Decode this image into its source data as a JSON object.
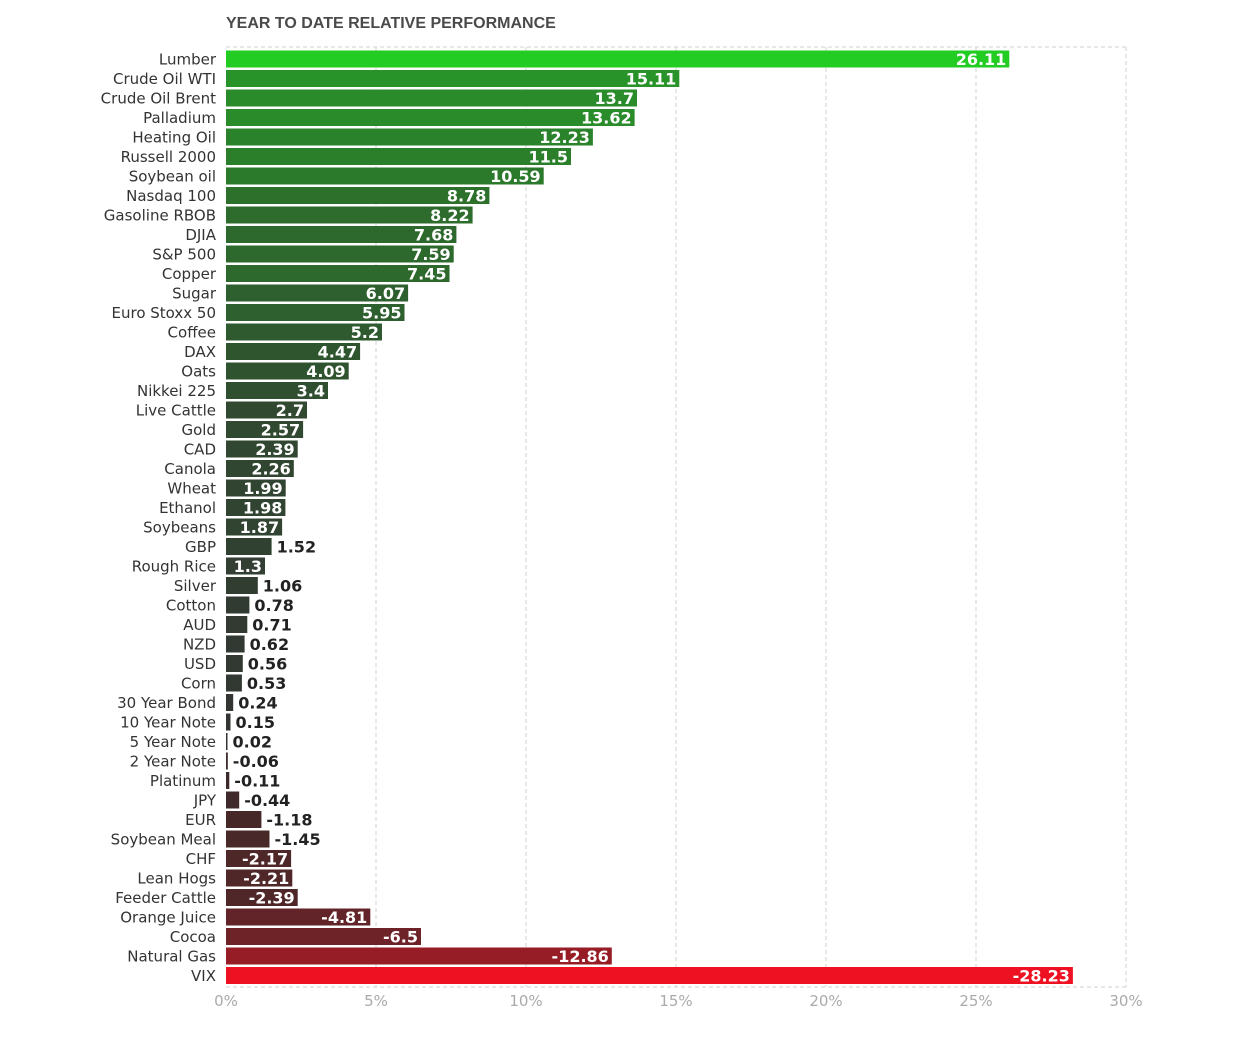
{
  "chart_data": {
    "type": "bar",
    "orientation": "horizontal",
    "title": "YEAR TO DATE RELATIVE PERFORMANCE",
    "xlim": [
      0,
      30
    ],
    "x_ticks": [
      {
        "value": 0,
        "label": "0%"
      },
      {
        "value": 5,
        "label": "5%"
      },
      {
        "value": 10,
        "label": "10%"
      },
      {
        "value": 15,
        "label": "15%"
      },
      {
        "value": 20,
        "label": "20%"
      },
      {
        "value": 25,
        "label": "25%"
      },
      {
        "value": 30,
        "label": "30%"
      }
    ],
    "grid": true,
    "bar_length": "absolute value",
    "colors": {
      "max_positive": "#22cc22",
      "min_positive": "#333333",
      "min_negative": "#3a2a2a",
      "max_negative": "#ee1122"
    },
    "categories": [
      "Lumber",
      "Crude Oil WTI",
      "Crude Oil Brent",
      "Palladium",
      "Heating Oil",
      "Russell 2000",
      "Soybean oil",
      "Nasdaq 100",
      "Gasoline RBOB",
      "DJIA",
      "S&P 500",
      "Copper",
      "Sugar",
      "Euro Stoxx 50",
      "Coffee",
      "DAX",
      "Oats",
      "Nikkei 225",
      "Live Cattle",
      "Gold",
      "CAD",
      "Canola",
      "Wheat",
      "Ethanol",
      "Soybeans",
      "GBP",
      "Rough Rice",
      "Silver",
      "Cotton",
      "AUD",
      "NZD",
      "USD",
      "Corn",
      "30 Year Bond",
      "10 Year Note",
      "5 Year Note",
      "2 Year Note",
      "Platinum",
      "JPY",
      "EUR",
      "Soybean Meal",
      "CHF",
      "Lean Hogs",
      "Feeder Cattle",
      "Orange Juice",
      "Cocoa",
      "Natural Gas",
      "VIX"
    ],
    "values": [
      26.11,
      15.11,
      13.7,
      13.62,
      12.23,
      11.5,
      10.59,
      8.78,
      8.22,
      7.68,
      7.59,
      7.45,
      6.07,
      5.95,
      5.2,
      4.47,
      4.09,
      3.4,
      2.7,
      2.57,
      2.39,
      2.26,
      1.99,
      1.98,
      1.87,
      1.52,
      1.3,
      1.06,
      0.78,
      0.71,
      0.62,
      0.56,
      0.53,
      0.24,
      0.15,
      0.02,
      -0.06,
      -0.11,
      -0.44,
      -1.18,
      -1.45,
      -2.17,
      -2.21,
      -2.39,
      -4.81,
      -6.5,
      -12.86,
      -28.23
    ],
    "value_labels": [
      "26.11",
      "15.11",
      "13.7",
      "13.62",
      "12.23",
      "11.5",
      "10.59",
      "8.78",
      "8.22",
      "7.68",
      "7.59",
      "7.45",
      "6.07",
      "5.95",
      "5.2",
      "4.47",
      "4.09",
      "3.4",
      "2.7",
      "2.57",
      "2.39",
      "2.26",
      "1.99",
      "1.98",
      "1.87",
      "1.52",
      "1.3",
      "1.06",
      "0.78",
      "0.71",
      "0.62",
      "0.56",
      "0.53",
      "0.24",
      "0.15",
      "0.02",
      "-0.06",
      "-0.11",
      "-0.44",
      "-1.18",
      "-1.45",
      "-2.17",
      "-2.21",
      "-2.39",
      "-4.81",
      "-6.5",
      "-12.86",
      "-28.23"
    ]
  }
}
